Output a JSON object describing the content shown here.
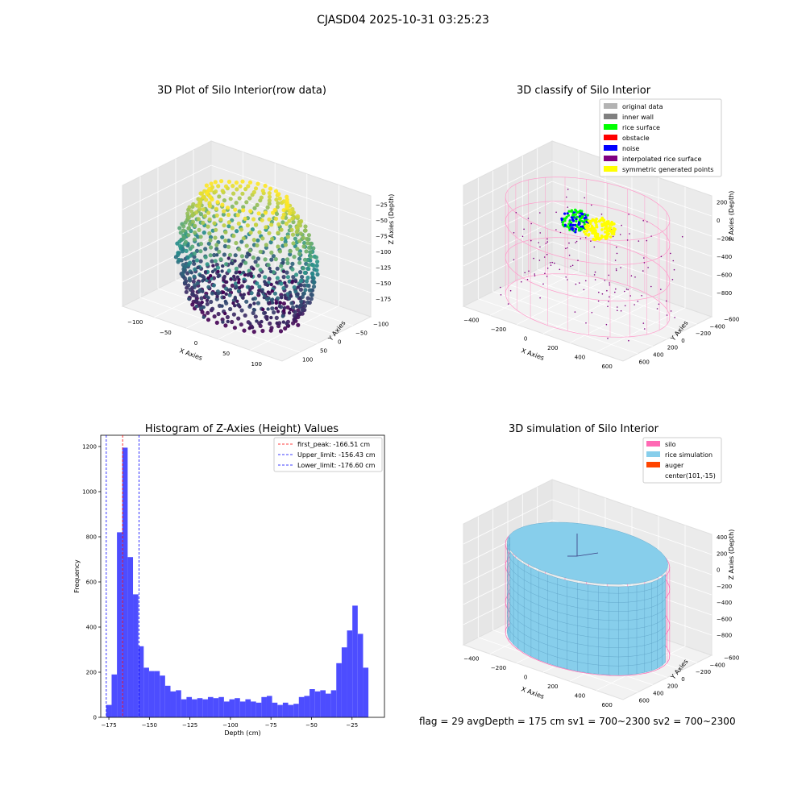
{
  "suptitle": "CJASD04 2025-10-31 03:25:23",
  "footer": "flag = 29  avgDepth = 175 cm  sv1 = 700~2300  sv2 = 700~2300",
  "chart_data": [
    {
      "type": "scatter",
      "projection": "3d",
      "title": "3D Plot of Silo Interior(row data)",
      "xlabel": "X Axies",
      "ylabel": "Y Axies",
      "zlabel": "Z Axies (Depth)",
      "x_ticks": [
        -100,
        -50,
        0,
        50,
        100
      ],
      "y_ticks": [
        -100,
        -50,
        0,
        50,
        100
      ],
      "z_ticks": [
        -25,
        -50,
        -75,
        -100,
        -125,
        -150,
        -175
      ],
      "colormap": "viridis",
      "point_color_low": "#440154",
      "point_color_mid": "#21918c",
      "point_color_high": "#fde725"
    },
    {
      "type": "scatter",
      "projection": "3d",
      "title": "3D classify of Silo Interior",
      "xlabel": "X Axies",
      "ylabel": "Y Axies",
      "zlabel": "Z Axies (Depth)",
      "x_ticks": [
        -400,
        -200,
        0,
        200,
        400,
        600
      ],
      "y_ticks": [
        -600,
        -400,
        -200,
        0,
        200,
        400,
        600
      ],
      "z_ticks": [
        200,
        0,
        -200,
        -400,
        -600,
        -800
      ],
      "legend_position": "top-right",
      "legend": [
        {
          "label": "original data",
          "color": "#b3b3b3"
        },
        {
          "label": "inner wall",
          "color": "#808080"
        },
        {
          "label": "rice surface",
          "color": "#00ff00"
        },
        {
          "label": "obstacle",
          "color": "#ff0000"
        },
        {
          "label": "noise",
          "color": "#0000ff"
        },
        {
          "label": "interpolated rice surface",
          "color": "#800080"
        },
        {
          "label": "symmetric generated points",
          "color": "#ffff00"
        }
      ]
    },
    {
      "type": "bar",
      "title": "Histogram of Z-Axies (Height) Values",
      "xlabel": "Depth (cm)",
      "ylabel": "Frequency",
      "xlim": [
        -180,
        -5
      ],
      "ylim": [
        0,
        1250
      ],
      "x_ticks": [
        -175,
        -150,
        -125,
        -100,
        -75,
        -50,
        -25
      ],
      "y_ticks": [
        0,
        200,
        400,
        600,
        800,
        1000,
        1200
      ],
      "bar_color": "#4d4dff",
      "bin_start": -176.6,
      "bin_width": 3.3,
      "values": [
        55,
        190,
        820,
        1195,
        710,
        545,
        315,
        220,
        205,
        205,
        185,
        140,
        115,
        120,
        80,
        90,
        80,
        85,
        80,
        90,
        85,
        90,
        70,
        80,
        85,
        70,
        80,
        70,
        65,
        90,
        95,
        65,
        55,
        65,
        55,
        60,
        90,
        95,
        125,
        115,
        120,
        105,
        120,
        240,
        310,
        385,
        495,
        370,
        220
      ],
      "lines": [
        {
          "label": "first_peak: -166.51 cm",
          "x": -166.51,
          "color": "#ff0000"
        },
        {
          "label": "Upper_limit: -156.43 cm",
          "x": -156.43,
          "color": "#0000ff"
        },
        {
          "label": "Lower_limit: -176.60 cm",
          "x": -176.6,
          "color": "#0000ff"
        }
      ],
      "legend_position": "top-right"
    },
    {
      "type": "surface",
      "projection": "3d",
      "title": "3D simulation of Silo Interior",
      "xlabel": "X Axies",
      "ylabel": "Y Axies",
      "zlabel": "Z Axies (Depth)",
      "x_ticks": [
        -400,
        -200,
        0,
        200,
        400,
        600
      ],
      "y_ticks": [
        -600,
        -400,
        -200,
        0,
        200,
        400,
        600
      ],
      "z_ticks": [
        400,
        200,
        0,
        -200,
        -400,
        -600,
        -800
      ],
      "legend_position": "top-right",
      "legend": [
        {
          "label": "silo",
          "color": "#ff69b4"
        },
        {
          "label": "rice simulation",
          "color": "#87ceeb"
        },
        {
          "label": "auger",
          "color": "#ff4500"
        },
        {
          "label": "center(101,-15)",
          "color": ""
        }
      ]
    }
  ]
}
